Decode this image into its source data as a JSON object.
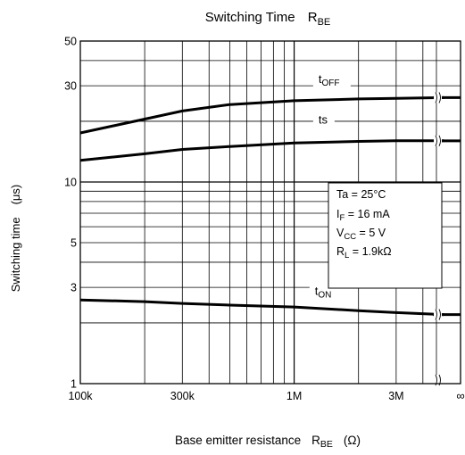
{
  "chart_data": {
    "type": "line",
    "title": "Switching Time",
    "title_sub": {
      "main": "R",
      "sub": "BE"
    },
    "xlabel": {
      "main": "Base emitter resistance",
      "sym": "R",
      "sub": "BE",
      "unit": "(Ω)"
    },
    "ylabel": "Switching time",
    "ylabel_unit": "(μs)",
    "x_scale": "log",
    "y_scale": "log",
    "xlim": [
      100000,
      6000000
    ],
    "ylim": [
      1,
      50
    ],
    "x_ticks": [
      {
        "value": 100000,
        "label": "100k"
      },
      {
        "value": 300000,
        "label": "300k"
      },
      {
        "value": 1000000,
        "label": "1M"
      },
      {
        "value": 3000000,
        "label": "3M"
      }
    ],
    "x_end_label": "∞",
    "y_ticks": [
      {
        "value": 1,
        "label": "1"
      },
      {
        "value": 3,
        "label": "3"
      },
      {
        "value": 5,
        "label": "5"
      },
      {
        "value": 10,
        "label": "10"
      },
      {
        "value": 30,
        "label": "30"
      },
      {
        "value": 50,
        "label": "50"
      }
    ],
    "grid": true,
    "series": [
      {
        "name": "tOFF",
        "label_main": "t",
        "label_sub": "OFF",
        "x": [
          100000,
          200000,
          300000,
          500000,
          1000000,
          2000000,
          3000000,
          5000000
        ],
        "y": [
          17.5,
          20.5,
          22.5,
          24.2,
          25.3,
          25.8,
          26.0,
          26.2
        ],
        "infinity_value": 26.2
      },
      {
        "name": "ts",
        "label_main": "ts",
        "label_sub": "",
        "x": [
          100000,
          200000,
          300000,
          500000,
          1000000,
          2000000,
          3000000,
          5000000
        ],
        "y": [
          12.8,
          13.8,
          14.5,
          15.0,
          15.6,
          15.9,
          16.0,
          16.0
        ],
        "infinity_value": 16.0
      },
      {
        "name": "tON",
        "label_main": "t",
        "label_sub": "ON",
        "x": [
          100000,
          200000,
          300000,
          500000,
          1000000,
          2000000,
          3000000,
          5000000
        ],
        "y": [
          2.6,
          2.55,
          2.5,
          2.45,
          2.4,
          2.3,
          2.25,
          2.2
        ],
        "infinity_value": 2.2
      }
    ],
    "conditions": [
      {
        "main": "Ta = 25°C",
        "sym": "",
        "sub": "",
        "rest": ""
      },
      {
        "main": "",
        "sym": "I",
        "sub": "F",
        "rest": " = 16 mA"
      },
      {
        "main": "",
        "sym": "V",
        "sub": "CC",
        "rest": " = 5 V"
      },
      {
        "main": "",
        "sym": "R",
        "sub": "L",
        "rest": " = 1.9kΩ"
      }
    ],
    "legend": "none"
  }
}
